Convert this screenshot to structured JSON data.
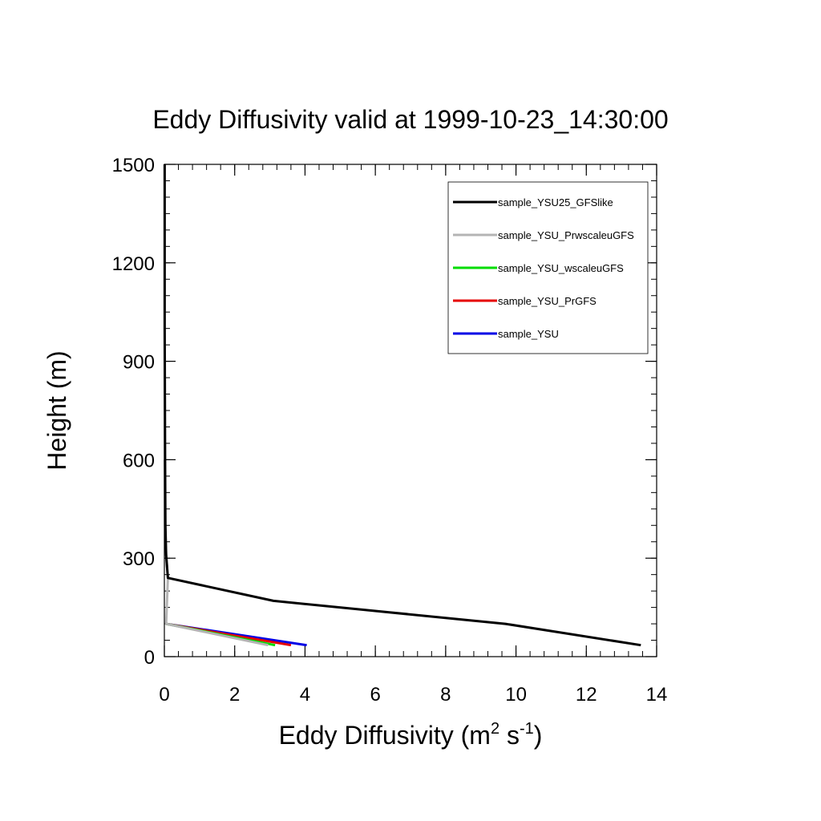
{
  "chart_data": {
    "type": "line",
    "title": "Eddy Diffusivity valid at 1999-10-23_14:30:00",
    "xlabel": {
      "main": "Eddy Diffusivity (m",
      "sup1": "2",
      "mid": " s",
      "sup2": "-1",
      "end": ")"
    },
    "ylabel": "Height (m)",
    "xlim": [
      0,
      14
    ],
    "ylim": [
      0,
      1500
    ],
    "xticks": [
      0,
      2,
      4,
      6,
      8,
      10,
      12,
      14
    ],
    "yticks": [
      0,
      300,
      600,
      900,
      1200,
      1500
    ],
    "x_minor_step": 0.4,
    "y_minor_step": 50,
    "grid": false,
    "legend_position": "top-right",
    "series": [
      {
        "name": "sample_YSU25_GFSlike",
        "color": "#000000",
        "x": [
          13.55,
          9.7,
          3.1,
          0.1,
          0.05,
          0.03,
          0.02,
          0.01,
          0.01
        ],
        "y": [
          35,
          100,
          170,
          240,
          310,
          400,
          600,
          1000,
          1500
        ]
      },
      {
        "name": "sample_YSU_PrwscaleuGFS",
        "color": "#b4b4b4",
        "x": [
          2.95,
          0.05,
          0.1,
          0.05,
          0.02,
          0.01
        ],
        "y": [
          35,
          100,
          240,
          310,
          400,
          600
        ]
      },
      {
        "name": "sample_YSU_wscaleuGFS",
        "color": "#00dc00",
        "x": [
          3.15,
          0.05
        ],
        "y": [
          35,
          100
        ]
      },
      {
        "name": "sample_YSU_PrGFS",
        "color": "#e60000",
        "x": [
          3.6,
          0.05
        ],
        "y": [
          35,
          100
        ]
      },
      {
        "name": "sample_YSU",
        "color": "#0000e6",
        "x": [
          4.05,
          0.05
        ],
        "y": [
          35,
          100
        ]
      }
    ]
  }
}
